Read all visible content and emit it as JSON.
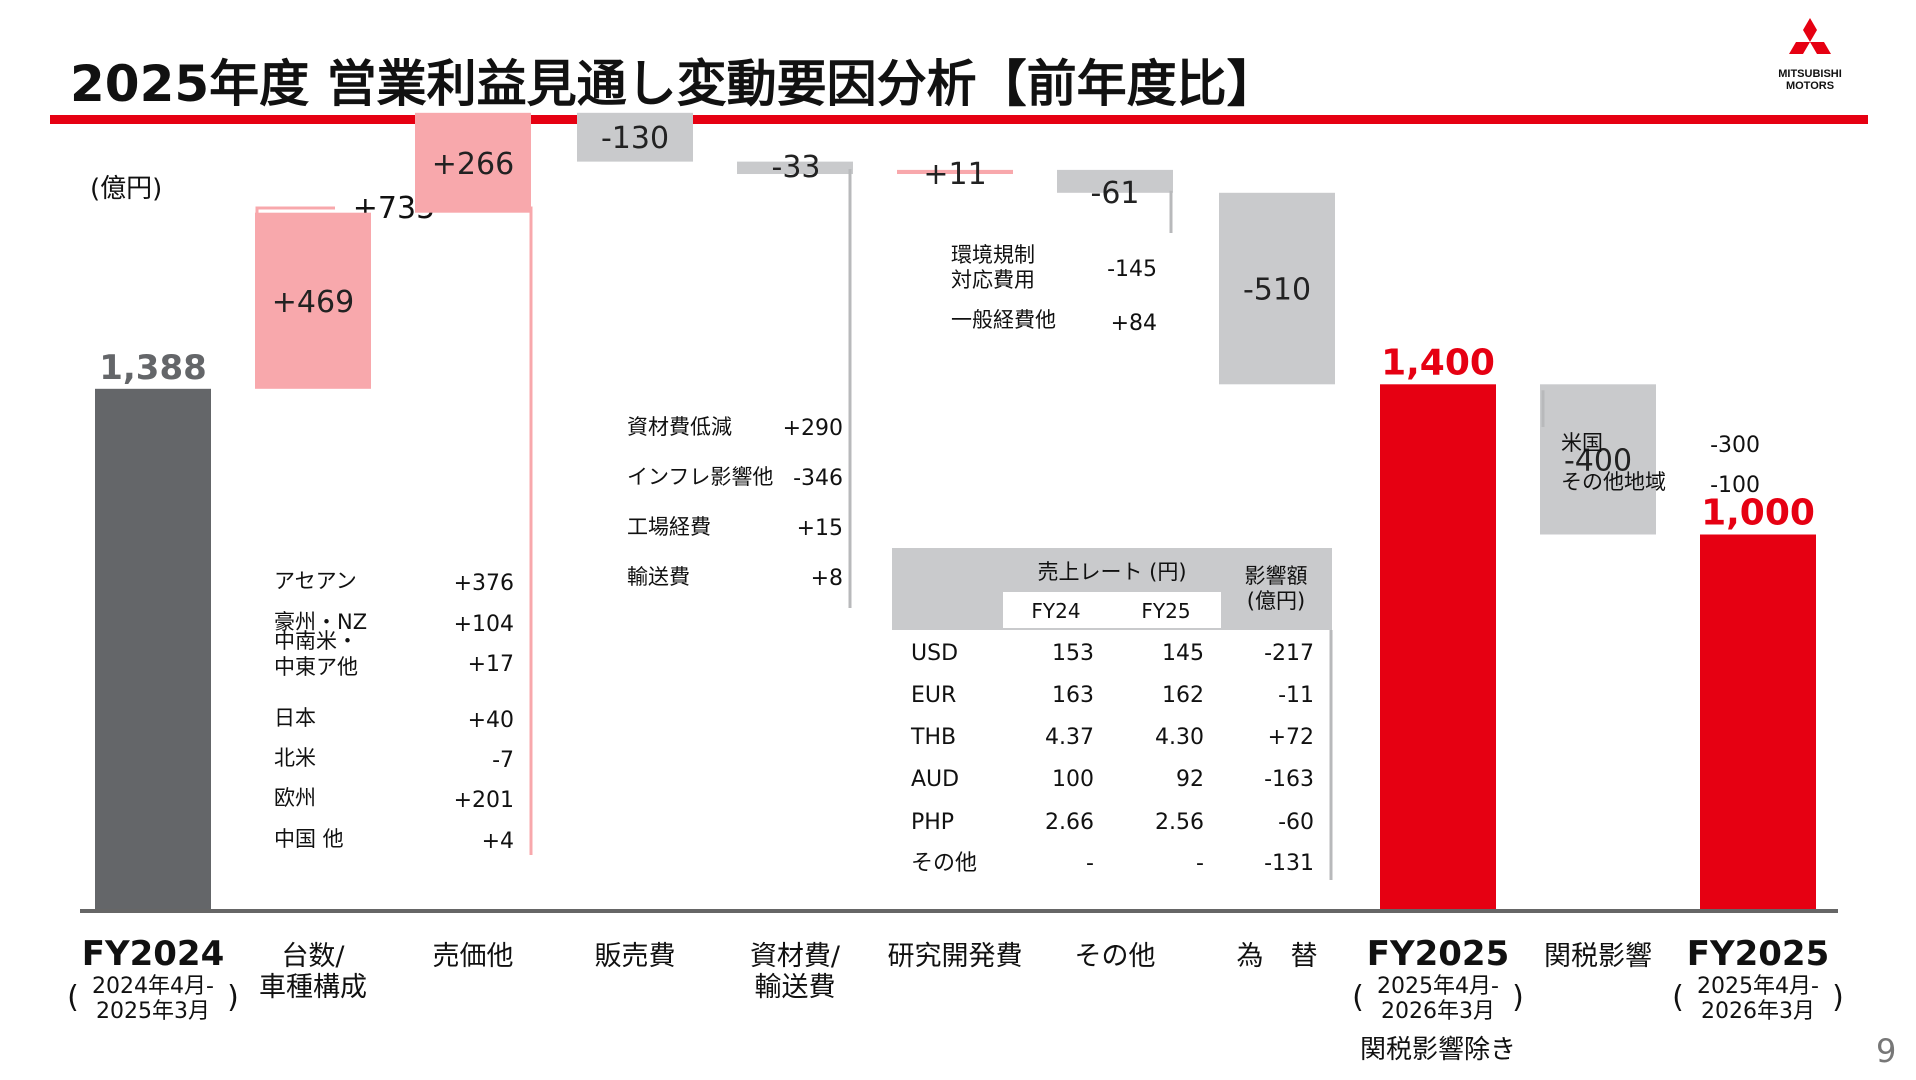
{
  "page": {
    "title": "2025年度 営業利益見通し変動要因分析【前年度比】",
    "logo": {
      "line1": "MITSUBISHI",
      "line2": "MOTORS"
    },
    "unit": "(億円)",
    "page_number": "9"
  },
  "colors": {
    "accent_red": "#e60012",
    "pink": "#f8a8ac",
    "gray_bar": "#646669",
    "light_gray": "#c9cacc"
  },
  "chart_data": {
    "type": "bar",
    "subtype": "waterfall",
    "ylabel": "(億円)",
    "categories": [
      {
        "label": "FY2024",
        "sub": [
          "2024年4月-",
          "2025年3月"
        ]
      },
      {
        "label": "台数/",
        "label2": "車種構成"
      },
      {
        "label": "売価他"
      },
      {
        "label": "販売費"
      },
      {
        "label": "資材費/",
        "label2": "輸送費"
      },
      {
        "label": "研究開発費"
      },
      {
        "label": "その他"
      },
      {
        "label": "為　替"
      },
      {
        "label": "FY2025",
        "sub": [
          "2025年4月-",
          "2026年3月"
        ],
        "note": "関税影響除き"
      },
      {
        "label": "関税影響"
      },
      {
        "label": "FY2025",
        "sub": [
          "2025年4月-",
          "2026年3月"
        ]
      }
    ],
    "values": [
      1388,
      469,
      266,
      -130,
      -33,
      11,
      -61,
      -510,
      1400,
      -400,
      1000
    ],
    "value_labels": [
      "1,388",
      "+469",
      "+266",
      "-130",
      "-33",
      "+11",
      "-61",
      "-510",
      "1,400",
      "-400",
      "1,000"
    ],
    "bracket_label": "+735",
    "annotations": {
      "volume_mix": [
        {
          "label": "アセアン",
          "value": "+376"
        },
        {
          "label": "豪州・NZ",
          "value": "+104"
        },
        {
          "label": "中南米・",
          "label2": "中東ア他",
          "value": "+17"
        },
        {
          "label": "日本",
          "value": "+40"
        },
        {
          "label": "北米",
          "value": "-7"
        },
        {
          "label": "欧州",
          "value": "+201"
        },
        {
          "label": "中国 他",
          "value": "+4"
        }
      ],
      "material": [
        {
          "label": "資材費低減",
          "value": "+290"
        },
        {
          "label": "インフレ影響他",
          "value": "-346"
        },
        {
          "label": "工場経費",
          "value": "+15"
        },
        {
          "label": "輸送費",
          "value": "+8"
        }
      ],
      "other": [
        {
          "label": "環境規制",
          "label2": "対応費用",
          "value": "-145"
        },
        {
          "label": "一般経費他",
          "value": "+84"
        }
      ],
      "tariff": [
        {
          "label": "米国",
          "value": "-300"
        },
        {
          "label": "その他地域",
          "value": "-100"
        }
      ]
    },
    "fx_table": {
      "header_rate": "売上レート (円)",
      "header_impact": "影響額",
      "header_impact2": "(億円)",
      "col_fy24": "FY24",
      "col_fy25": "FY25",
      "rows": [
        {
          "ccy": "USD",
          "fy24": "153",
          "fy25": "145",
          "impact": "-217"
        },
        {
          "ccy": "EUR",
          "fy24": "163",
          "fy25": "162",
          "impact": "-11"
        },
        {
          "ccy": "THB",
          "fy24": "4.37",
          "fy25": "4.30",
          "impact": "+72"
        },
        {
          "ccy": "AUD",
          "fy24": "100",
          "fy25": "92",
          "impact": "-163"
        },
        {
          "ccy": "PHP",
          "fy24": "2.66",
          "fy25": "2.56",
          "impact": "-60"
        },
        {
          "ccy": "その他",
          "fy24": "-",
          "fy25": "-",
          "impact": "-131"
        }
      ]
    }
  }
}
